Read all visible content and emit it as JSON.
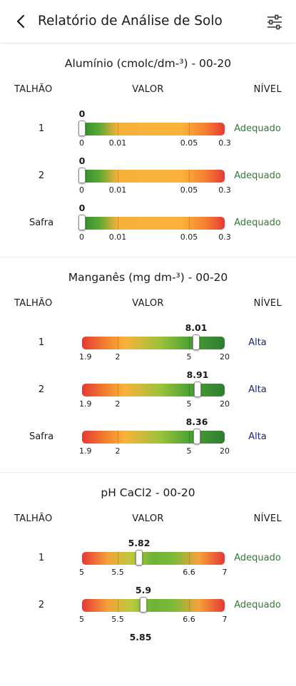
{
  "app_bar": {
    "title": "Relatório de Análise de Solo",
    "back_icon": "chevron-left-icon",
    "filter_icon": "sliders-icon"
  },
  "columns": {
    "talhao": "TALHÃO",
    "valor": "VALOR",
    "nivel": "NÍVEL"
  },
  "colors": {
    "red": "#e53935",
    "orange": "#fbb23a",
    "green": "#2e7d32",
    "adequado_text": "#2e7d32",
    "alta_text": "#1a237e"
  },
  "sections": [
    {
      "title": "Alumínio (cmolc/dm-³) - 00-20",
      "gradient": "green-orange-red",
      "ticks": [
        "0",
        "0.01",
        "0.05",
        "0.3"
      ],
      "rows": [
        {
          "label": "1",
          "value": "0",
          "level": "Adequado",
          "fraction": 0.0
        },
        {
          "label": "2",
          "value": "0",
          "level": "Adequado",
          "fraction": 0.0
        },
        {
          "label": "Safra",
          "value": "0",
          "level": "Adequado",
          "fraction": 0.0
        }
      ]
    },
    {
      "title": "Manganês (mg dm-³) - 00-20",
      "gradient": "red-orange-green",
      "ticks": [
        "1.9",
        "2",
        "5",
        "20"
      ],
      "rows": [
        {
          "label": "1",
          "value": "8.01",
          "level": "Alta",
          "fraction": 0.8
        },
        {
          "label": "2",
          "value": "8.91",
          "level": "Alta",
          "fraction": 0.81
        },
        {
          "label": "Safra",
          "value": "8.36",
          "level": "Alta",
          "fraction": 0.805
        }
      ]
    },
    {
      "title": "pH CaCl2 - 00-20",
      "gradient": "red-orange-green-red",
      "ticks": [
        "5",
        "5.5",
        "6.6",
        "7"
      ],
      "rows": [
        {
          "label": "1",
          "value": "5.82",
          "level": "Adequado",
          "fraction": 0.4
        },
        {
          "label": "2",
          "value": "5.9",
          "level": "Adequado",
          "fraction": 0.43
        },
        {
          "label": "",
          "value": "5.85",
          "level": "",
          "fraction": 0.41
        }
      ]
    }
  ]
}
